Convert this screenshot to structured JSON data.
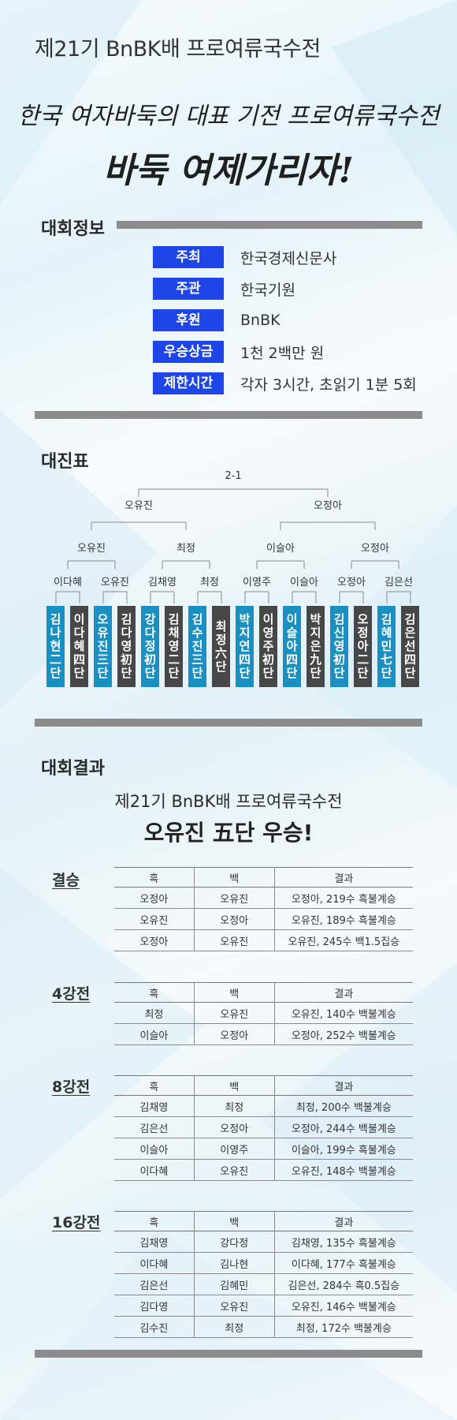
{
  "header": {
    "title": "제21기 BnBK배 프로여류국수전"
  },
  "slogan": {
    "line1": "한국 여자바둑의 대표 기전 프로여류국수전",
    "line2": "바둑 여제가리자!"
  },
  "info": {
    "title": "대회정보",
    "rows": [
      {
        "label": "주최",
        "value": "한국경제신문사"
      },
      {
        "label": "주관",
        "value": "한국기원"
      },
      {
        "label": "후원",
        "value": "BnBK"
      },
      {
        "label": "우승상금",
        "value": "1천 2백만 원"
      },
      {
        "label": "제한시간",
        "value": "각자 3시간, 초읽기 1분 5회"
      }
    ]
  },
  "bracket": {
    "title": "대진표",
    "final_score": "2-1",
    "finalists": [
      "오유진",
      "오정아"
    ],
    "semifinal_winners": [
      "오유진",
      "최정",
      "이슬아",
      "오정아"
    ],
    "round16_winners": [
      "이다혜",
      "오유진",
      "김채영",
      "최정",
      "이영주",
      "이슬아",
      "오정아",
      "김은선"
    ],
    "players": [
      "김나현二단",
      "이다혜四단",
      "오유진三단",
      "김다영初단",
      "강다정初단",
      "김채영二단",
      "김수진三단",
      "최정六단",
      "박지연四단",
      "이영주初단",
      "이슬아四단",
      "박지은九단",
      "김신영初단",
      "오정아二단",
      "김혜민七단",
      "김은선四단"
    ]
  },
  "results": {
    "title": "대회결과",
    "headline1": "제21기 BnBK배 프로여류국수전",
    "headline2": "오유진 五단 우승!",
    "columns": [
      "흑",
      "백",
      "결과"
    ],
    "rounds": [
      {
        "name": "결승",
        "rows": [
          [
            "오정아",
            "오유진",
            "오정아, 219수 흑불계승"
          ],
          [
            "오유진",
            "오정아",
            "오유진, 189수 흑불계승"
          ],
          [
            "오정아",
            "오유진",
            "오유진, 245수 백1.5집승"
          ]
        ]
      },
      {
        "name": "4강전",
        "rows": [
          [
            "최정",
            "오유진",
            "오유진, 140수 백불계승"
          ],
          [
            "이슬아",
            "오정아",
            "오정아, 252수 백불계승"
          ]
        ]
      },
      {
        "name": "8강전",
        "rows": [
          [
            "김채영",
            "최정",
            "최정, 200수 백불계승"
          ],
          [
            "김은선",
            "오정아",
            "오정아, 244수 백불계승"
          ],
          [
            "이슬아",
            "이영주",
            "이슬아, 199수 흑불계승"
          ],
          [
            "이다혜",
            "오유진",
            "오유진, 148수 백불계승"
          ]
        ]
      },
      {
        "name": "16강전",
        "rows": [
          [
            "김채영",
            "강다정",
            "김채영, 135수 흑불계승"
          ],
          [
            "이다혜",
            "김나현",
            "이다혜, 177수 흑불계승"
          ],
          [
            "김은선",
            "김혜민",
            "김은선, 284수 흑0.5집승"
          ],
          [
            "김다영",
            "오유진",
            "오유진, 146수 백불계승"
          ],
          [
            "김수진",
            "최정",
            "최정, 172수 백불계승"
          ]
        ]
      }
    ]
  }
}
